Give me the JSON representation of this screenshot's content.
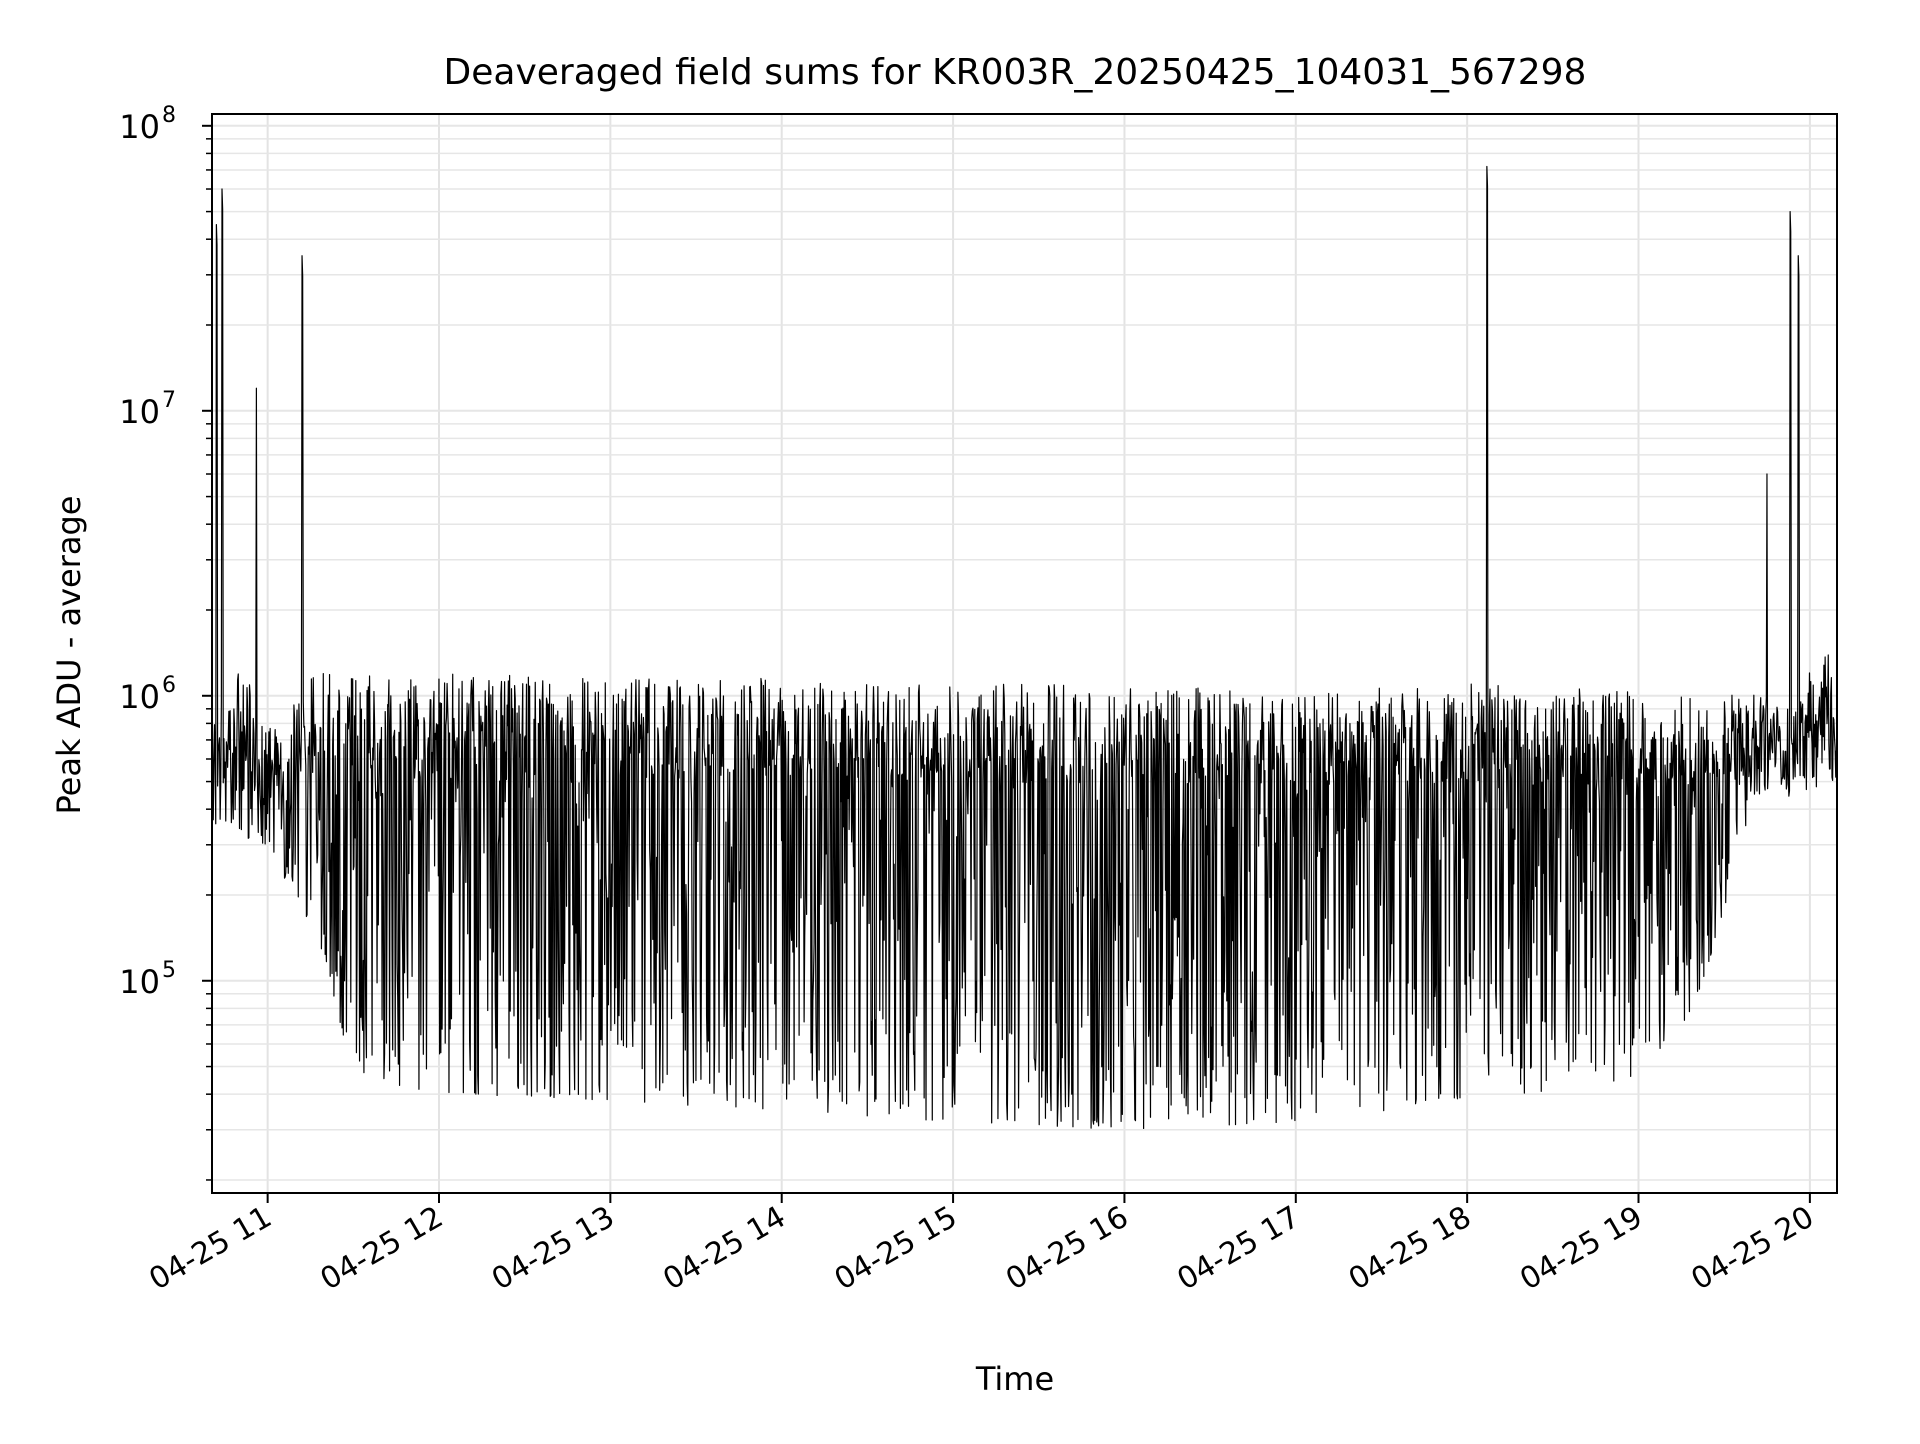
{
  "chart_data": {
    "type": "line",
    "title": "Deaveraged field sums for KR003R_20250425_104031_567298",
    "xlabel": "Time",
    "ylabel": "Peak ADU - average",
    "yscale": "log",
    "ylim": [
      18000,
      110000000
    ],
    "xlim": [
      "2025-04-25T10:40:31",
      "2025-04-25T20:09:30"
    ],
    "x_ticks": [
      {
        "t": "2025-04-25T11:00",
        "label": "04-25 11"
      },
      {
        "t": "2025-04-25T12:00",
        "label": "04-25 12"
      },
      {
        "t": "2025-04-25T13:00",
        "label": "04-25 13"
      },
      {
        "t": "2025-04-25T14:00",
        "label": "04-25 14"
      },
      {
        "t": "2025-04-25T15:00",
        "label": "04-25 15"
      },
      {
        "t": "2025-04-25T16:00",
        "label": "04-25 16"
      },
      {
        "t": "2025-04-25T17:00",
        "label": "04-25 17"
      },
      {
        "t": "2025-04-25T18:00",
        "label": "04-25 18"
      },
      {
        "t": "2025-04-25T19:00",
        "label": "04-25 19"
      },
      {
        "t": "2025-04-25T20:00",
        "label": "04-25 20"
      }
    ],
    "y_ticks": [
      {
        "v": 100000,
        "label": "10",
        "exp": "5"
      },
      {
        "v": 1000000,
        "label": "10",
        "exp": "6"
      },
      {
        "v": 10000000,
        "label": "10",
        "exp": "7"
      },
      {
        "v": 100000000,
        "label": "10",
        "exp": "8"
      }
    ],
    "grid": true,
    "series_color": "#000000",
    "envelope": {
      "description_points_upper": [
        [
          "2025-04-25T10:40",
          1200000
        ],
        [
          "2025-04-25T10:42",
          45000000
        ],
        [
          "2025-04-25T10:44",
          60000000
        ],
        [
          "2025-04-25T10:45",
          900000
        ],
        [
          "2025-04-25T10:50",
          1500000
        ],
        [
          "2025-04-25T10:56",
          12000000
        ],
        [
          "2025-04-25T11:00",
          800000
        ],
        [
          "2025-04-25T11:10",
          1000000
        ],
        [
          "2025-04-25T11:12",
          35000000
        ],
        [
          "2025-04-25T11:14",
          1200000
        ],
        [
          "2025-04-25T12:00",
          1200000
        ],
        [
          "2025-04-25T13:00",
          1150000
        ],
        [
          "2025-04-25T14:00",
          1150000
        ],
        [
          "2025-04-25T15:00",
          1100000
        ],
        [
          "2025-04-25T16:00",
          1100000
        ],
        [
          "2025-04-25T17:00",
          1050000
        ],
        [
          "2025-04-25T18:00",
          1100000
        ],
        [
          "2025-04-25T18:07",
          72000000
        ],
        [
          "2025-04-25T18:09",
          1100000
        ],
        [
          "2025-04-25T19:00",
          1050000
        ],
        [
          "2025-04-25T19:45",
          6000000
        ],
        [
          "2025-04-25T19:47",
          1000000
        ],
        [
          "2025-04-25T19:53",
          50000000
        ],
        [
          "2025-04-25T19:56",
          35000000
        ],
        [
          "2025-04-25T19:58",
          1000000
        ],
        [
          "2025-04-25T20:05",
          2600000
        ],
        [
          "2025-04-25T20:09",
          1000000
        ]
      ],
      "description_points_lower": [
        [
          "2025-04-25T10:40",
          350000
        ],
        [
          "2025-04-25T11:00",
          300000
        ],
        [
          "2025-04-25T11:20",
          120000
        ],
        [
          "2025-04-25T11:30",
          45000
        ],
        [
          "2025-04-25T12:00",
          40000
        ],
        [
          "2025-04-25T13:00",
          38000
        ],
        [
          "2025-04-25T14:00",
          35000
        ],
        [
          "2025-04-25T15:00",
          32000
        ],
        [
          "2025-04-25T16:00",
          30000
        ],
        [
          "2025-04-25T17:00",
          32000
        ],
        [
          "2025-04-25T18:00",
          38000
        ],
        [
          "2025-04-25T19:00",
          45000
        ],
        [
          "2025-04-25T19:20",
          80000
        ],
        [
          "2025-04-25T19:40",
          400000
        ],
        [
          "2025-04-25T20:09",
          500000
        ]
      ]
    }
  }
}
